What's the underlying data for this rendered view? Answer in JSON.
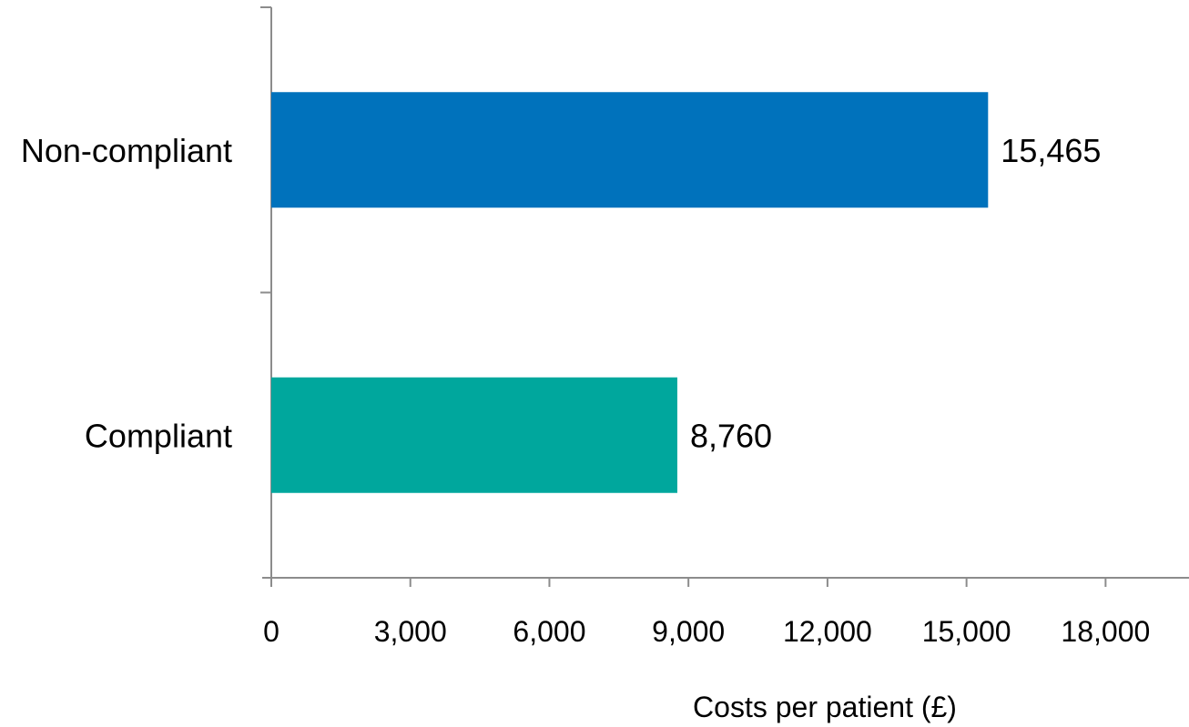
{
  "chart_data": {
    "type": "bar",
    "orientation": "horizontal",
    "categories": [
      "Non-compliant",
      "Compliant"
    ],
    "values": [
      15465,
      8760
    ],
    "data_labels": [
      "15,465",
      "8,760"
    ],
    "colors": [
      "#0072BC",
      "#00A79D"
    ],
    "xlabel": "Costs per patient (£)",
    "ylabel": "",
    "title": "",
    "xlim": [
      0,
      19800
    ],
    "x_ticks": [
      0,
      3000,
      6000,
      9000,
      12000,
      15000,
      18000
    ],
    "x_tick_labels": [
      "0",
      "3,000",
      "6,000",
      "9,000",
      "12,000",
      "15,000",
      "18,000"
    ],
    "grid": false,
    "legend": "none",
    "axis_color": "#8C8C8C"
  }
}
